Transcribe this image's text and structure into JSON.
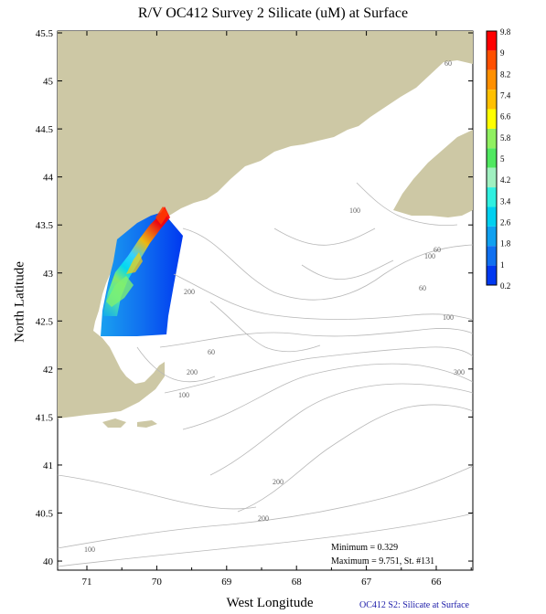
{
  "title": "R/V OC412 Survey 2 Silicate (uM) at Surface",
  "xlabel": "West Longitude",
  "ylabel": "North Latitude",
  "footer": "OC412  S2: Silicate at Surface",
  "stats": {
    "minimum": "Minimum = 0.329",
    "maximum": "Maximum = 9.751, St. #131"
  },
  "x_ticks": [
    "71",
    "70",
    "69",
    "68",
    "67",
    "66"
  ],
  "y_ticks": [
    "45.5",
    "45",
    "44.5",
    "44",
    "43.5",
    "43",
    "42.5",
    "42",
    "41.5",
    "41",
    "40.5",
    "40"
  ],
  "colorbar": {
    "labels": [
      "9.8",
      "9",
      "8.2",
      "7.4",
      "6.6",
      "5.8",
      "5",
      "4.2",
      "3.4",
      "2.6",
      "1.8",
      "1",
      "0.2"
    ],
    "colors": [
      "#ff0000",
      "#ff5000",
      "#ff9000",
      "#ffc000",
      "#ffff00",
      "#90f060",
      "#50e860",
      "#a0f0c0",
      "#30f0e0",
      "#00d0f0",
      "#10a0f0",
      "#1070f0",
      "#0038f0"
    ]
  },
  "contour_labels": [
    "60",
    "100",
    "200",
    "60",
    "100",
    "200",
    "200",
    "100",
    "100",
    "300",
    "60",
    "100",
    "200",
    "60"
  ],
  "colors": {
    "land": "#cdc8a5",
    "contour": "#b8b8b8",
    "footer_text": "#1a1aa8"
  }
}
